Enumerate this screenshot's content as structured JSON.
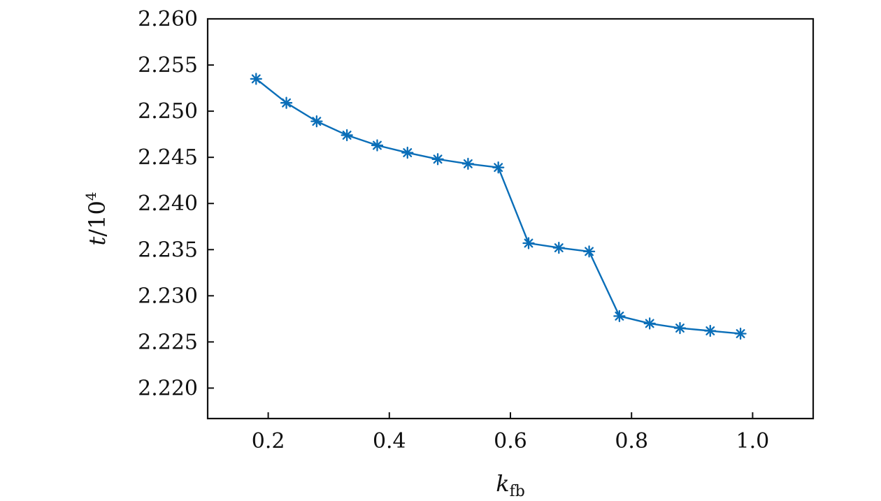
{
  "chart_data": {
    "type": "line",
    "x": [
      0.18,
      0.23,
      0.28,
      0.33,
      0.38,
      0.43,
      0.48,
      0.53,
      0.58,
      0.63,
      0.68,
      0.73,
      0.78,
      0.83,
      0.88,
      0.93,
      0.98
    ],
    "series": [
      {
        "values": [
          2.2535,
          2.2509,
          2.2489,
          2.2474,
          2.2463,
          2.2455,
          2.2448,
          2.2443,
          2.2439,
          2.2357,
          2.2352,
          2.2348,
          2.2278,
          2.227,
          2.2265,
          2.2262,
          2.2259
        ],
        "color": "#0a6eb8",
        "marker": "asterisk"
      }
    ],
    "xlabel": {
      "main": "k",
      "sub": "fb"
    },
    "ylabel": {
      "main": "t",
      "sep": "/10",
      "sup": "4"
    },
    "xlim": [
      0.1,
      1.1
    ],
    "ylim": [
      2.2167,
      2.26
    ],
    "xticks": [
      "0.2",
      "0.4",
      "0.6",
      "0.8",
      "1.0"
    ],
    "xtick_values": [
      0.2,
      0.4,
      0.6,
      0.8,
      1.0
    ],
    "yticks": [
      "2.220",
      "2.225",
      "2.230",
      "2.235",
      "2.240",
      "2.245",
      "2.250",
      "2.255",
      "2.260"
    ],
    "ytick_values": [
      2.22,
      2.225,
      2.23,
      2.235,
      2.24,
      2.245,
      2.25,
      2.255,
      2.26
    ],
    "grid": false,
    "legend": "none"
  }
}
